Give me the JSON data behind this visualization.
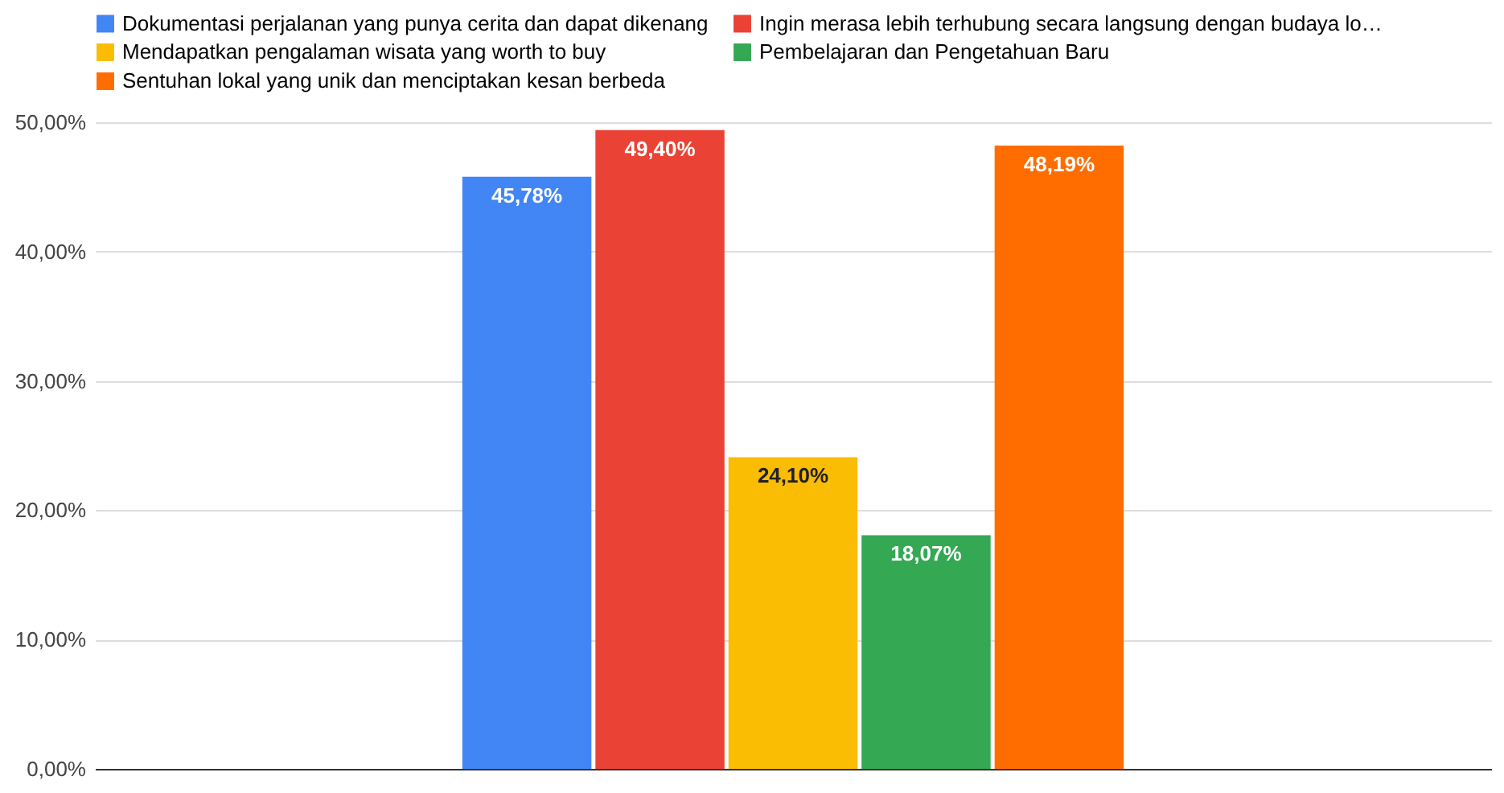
{
  "chart_data": {
    "type": "bar",
    "categories": [
      null
    ],
    "series": [
      {
        "name": "Dokumentasi perjalanan yang punya cerita dan dapat dikenang",
        "color": "#4285f4",
        "values": [
          45.78
        ],
        "value_labels": [
          "45,78%"
        ]
      },
      {
        "name": "Ingin merasa lebih terhubung secara langsung dengan budaya lo…",
        "color": "#ea4335",
        "values": [
          49.4
        ],
        "value_labels": [
          "49,40%"
        ]
      },
      {
        "name": "Mendapatkan pengalaman wisata yang worth to buy",
        "color": "#fbbc04",
        "values": [
          24.1
        ],
        "value_labels": [
          "24,10%"
        ]
      },
      {
        "name": "Pembelajaran dan Pengetahuan Baru",
        "color": "#34a853",
        "values": [
          18.07
        ],
        "value_labels": [
          "18,07%"
        ]
      },
      {
        "name": "Sentuhan lokal yang unik dan menciptakan kesan berbeda",
        "color": "#ff6d01",
        "values": [
          48.19
        ],
        "value_labels": [
          "48,19%"
        ]
      }
    ],
    "ylim": [
      0,
      50
    ],
    "yticks": [
      {
        "value": 0,
        "label": "0,00%"
      },
      {
        "value": 10,
        "label": "10,00%"
      },
      {
        "value": 20,
        "label": "20,00%"
      },
      {
        "value": 30,
        "label": "30,00%"
      },
      {
        "value": 40,
        "label": "40,00%"
      },
      {
        "value": 50,
        "label": "50,00%"
      }
    ],
    "grid": "y",
    "legend": "top",
    "tick_labels": "y"
  }
}
